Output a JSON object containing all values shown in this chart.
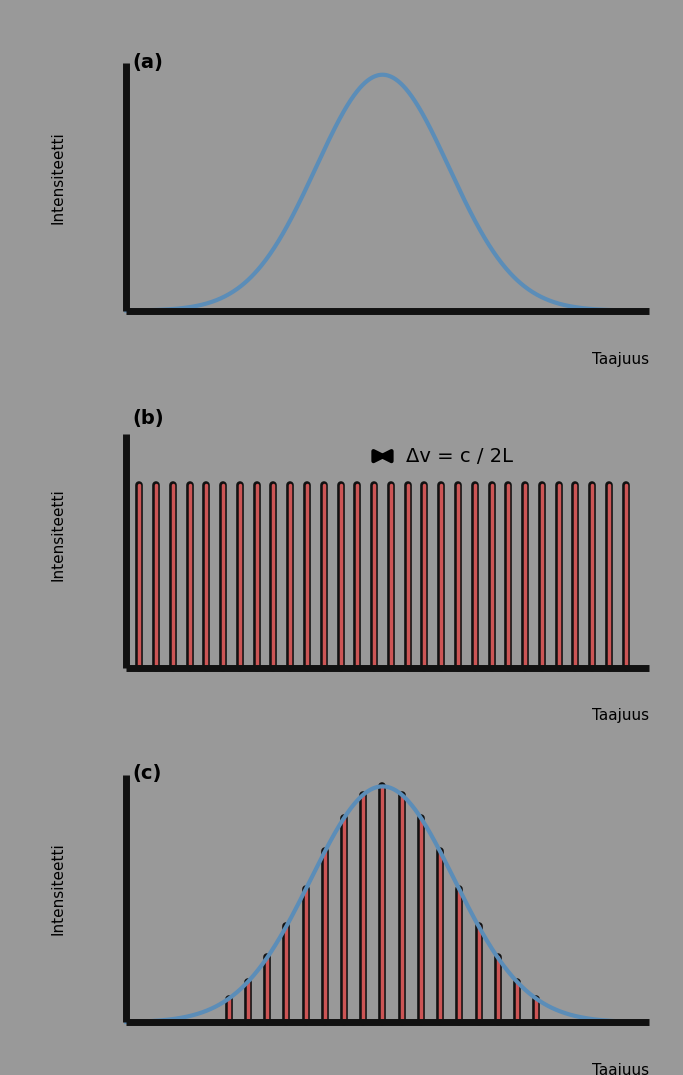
{
  "bg_color": "#999999",
  "axis_color": "#111111",
  "ylabel": "Intensiteetti",
  "xlabel": "Taajuus",
  "label_a": "(a)",
  "label_b": "(b)",
  "label_c": "(c)",
  "gauss_color": "#5b8db8",
  "gauss_linewidth": 3.0,
  "bar_color_red": "#cc5555",
  "bar_color_black": "#111111",
  "n_bars_b": 30,
  "n_bars_c": 17,
  "annotation_text": "Δv = c / 2L",
  "annotation_fontsize": 14
}
